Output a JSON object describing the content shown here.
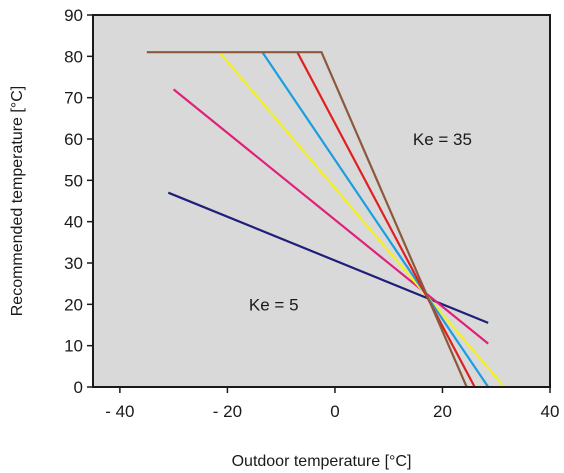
{
  "chart_data": {
    "type": "line",
    "title": "",
    "xlabel": "Outdoor temperature [°C]",
    "ylabel": "Recommended temperature [°C]",
    "xlim": [
      -45,
      40
    ],
    "ylim": [
      0,
      90
    ],
    "xticks": [
      -40,
      -20,
      0,
      20,
      40
    ],
    "xtick_labels": [
      "- 40",
      "- 20",
      "0",
      "20",
      "40"
    ],
    "yticks": [
      0,
      10,
      20,
      30,
      40,
      50,
      60,
      70,
      80,
      90
    ],
    "ytick_labels": [
      "0",
      "10",
      "20",
      "30",
      "40",
      "50",
      "60",
      "70",
      "80",
      "90"
    ],
    "grid": false,
    "background_color": "#d9d9d9",
    "series": [
      {
        "color": "#1f1f7a",
        "x": [
          -31,
          28.5
        ],
        "y": [
          47,
          15.5
        ]
      },
      {
        "color": "#e0207a",
        "x": [
          -30,
          28.5
        ],
        "y": [
          72,
          10.5
        ]
      },
      {
        "color": "#f5f01e",
        "x": [
          -21.5,
          31.5
        ],
        "y": [
          81,
          0
        ]
      },
      {
        "color": "#1a9ee0",
        "x": [
          -13.5,
          28.5
        ],
        "y": [
          81,
          0
        ]
      },
      {
        "color": "#e02020",
        "x": [
          -7,
          26
        ],
        "y": [
          81,
          0
        ]
      },
      {
        "color": "#8b5a3c",
        "x": [
          -35,
          -2.5,
          24.5
        ],
        "y": [
          81,
          81,
          0
        ]
      }
    ],
    "annotations": [
      {
        "text": "Ke = 35",
        "x": 14.5,
        "y": 60
      },
      {
        "text": "Ke = 5",
        "x": -16,
        "y": 20
      }
    ]
  }
}
